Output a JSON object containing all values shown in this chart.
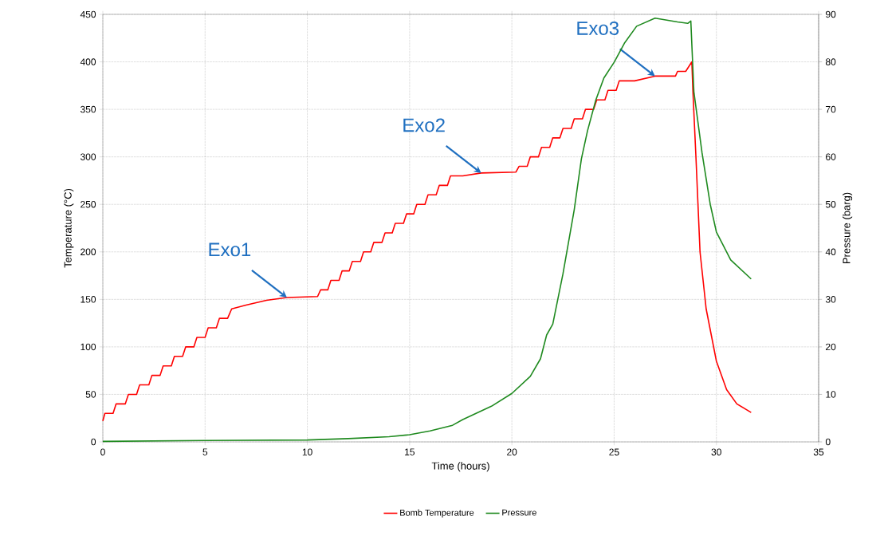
{
  "chart_data": {
    "type": "line",
    "xlabel": "Time (hours)",
    "ylabel": "Temperature (°C)",
    "y2label": "Pressure (barg)",
    "xlim": [
      0,
      35
    ],
    "xticks": [
      0,
      5,
      10,
      15,
      20,
      25,
      30,
      35
    ],
    "ylim": [
      0,
      450
    ],
    "yticks": [
      0,
      50,
      100,
      150,
      200,
      250,
      300,
      350,
      400,
      450
    ],
    "y2lim": [
      0,
      90
    ],
    "y2ticks": [
      0,
      10,
      20,
      30,
      40,
      50,
      60,
      70,
      80,
      90
    ],
    "grid": true,
    "legend": "bottom",
    "line_style": "solid",
    "series": [
      {
        "name": "Bomb Temperature",
        "color": "#ff0000",
        "x": [
          0,
          0.1,
          0.5,
          0.65,
          1.1,
          1.25,
          1.65,
          1.8,
          2.25,
          2.4,
          2.8,
          2.95,
          3.35,
          3.5,
          3.9,
          4.05,
          4.45,
          4.6,
          5.0,
          5.15,
          5.55,
          5.7,
          6.1,
          6.3,
          7,
          8,
          9,
          10.5,
          10.65,
          11.0,
          11.15,
          11.55,
          11.7,
          12.05,
          12.2,
          12.6,
          12.75,
          13.1,
          13.25,
          13.65,
          13.8,
          14.15,
          14.3,
          14.7,
          14.85,
          15.2,
          15.35,
          15.75,
          15.9,
          16.3,
          16.45,
          16.85,
          17.0,
          17.6,
          18.5,
          20.2,
          20.35,
          20.75,
          20.9,
          21.3,
          21.45,
          21.85,
          22.0,
          22.35,
          22.5,
          22.9,
          23.05,
          23.45,
          23.6,
          24.0,
          24.15,
          24.55,
          24.7,
          25.1,
          25.25,
          26.0,
          27.0,
          28.0,
          28.1,
          28.5,
          28.8,
          28.85,
          29.0,
          29.2,
          29.5,
          30.0,
          30.5,
          31.0,
          31.7
        ],
        "values": [
          22,
          30,
          30,
          40,
          40,
          50,
          50,
          60,
          60,
          70,
          70,
          80,
          80,
          90,
          90,
          100,
          100,
          110,
          110,
          120,
          120,
          130,
          130,
          140,
          144,
          149,
          152,
          153,
          160,
          160,
          170,
          170,
          180,
          180,
          190,
          190,
          200,
          200,
          210,
          210,
          220,
          220,
          230,
          230,
          240,
          240,
          250,
          250,
          260,
          260,
          270,
          270,
          280,
          280,
          283,
          284,
          290,
          290,
          300,
          300,
          310,
          310,
          320,
          320,
          330,
          330,
          340,
          340,
          350,
          350,
          360,
          360,
          370,
          370,
          380,
          380,
          385,
          385,
          390,
          390,
          400,
          370,
          300,
          200,
          140,
          85,
          55,
          40,
          31
        ]
      },
      {
        "name": "Pressure",
        "color": "#1f8a1f",
        "axis": "y2",
        "x": [
          0,
          5,
          10,
          12,
          14,
          15,
          16,
          17.1,
          17.6,
          19,
          20,
          20.9,
          21.4,
          21.7,
          22.0,
          22.5,
          23.05,
          23.4,
          23.7,
          24.1,
          24.5,
          25.0,
          25.5,
          26.1,
          27.0,
          28.1,
          28.6,
          28.75,
          28.9,
          29.3,
          29.7,
          30.0,
          30.7,
          31.7
        ],
        "values": [
          0.1,
          0.3,
          0.4,
          0.7,
          1.1,
          1.5,
          2.3,
          3.5,
          4.7,
          7.5,
          10.2,
          13.8,
          17.5,
          22.5,
          24.8,
          35.4,
          48.9,
          59.6,
          65.5,
          71.9,
          76.6,
          79.9,
          83.9,
          87.5,
          89.2,
          88.4,
          88.1,
          88.6,
          73.7,
          60.8,
          50.0,
          44.2,
          38.3,
          34.3
        ]
      }
    ],
    "annotations": [
      {
        "text": "Exo1",
        "x": 9,
        "y": 152
      },
      {
        "text": "Exo2",
        "x": 18.5,
        "y": 283
      },
      {
        "text": "Exo3",
        "x": 27.0,
        "y": 385
      }
    ]
  }
}
